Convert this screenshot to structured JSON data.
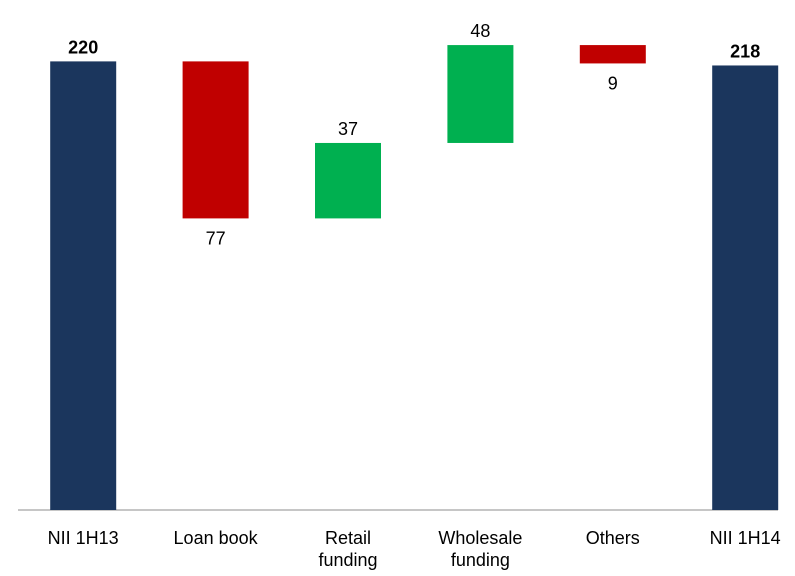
{
  "chart_data": {
    "type": "waterfall",
    "categories": [
      "NII 1H13",
      "Loan book",
      "Retail funding",
      "Wholesale funding",
      "Others",
      "NII 1H14"
    ],
    "values": [
      220,
      -77,
      37,
      48,
      -9,
      218
    ],
    "value_labels": [
      "220",
      "77",
      "37",
      "48",
      "9",
      "218"
    ],
    "measure": [
      "total",
      "relative",
      "relative",
      "relative",
      "relative",
      "total"
    ],
    "colors": {
      "total": "#1b365d",
      "increase": "#00b050",
      "decrease": "#c00000"
    },
    "ylim": [
      0,
      230
    ]
  }
}
